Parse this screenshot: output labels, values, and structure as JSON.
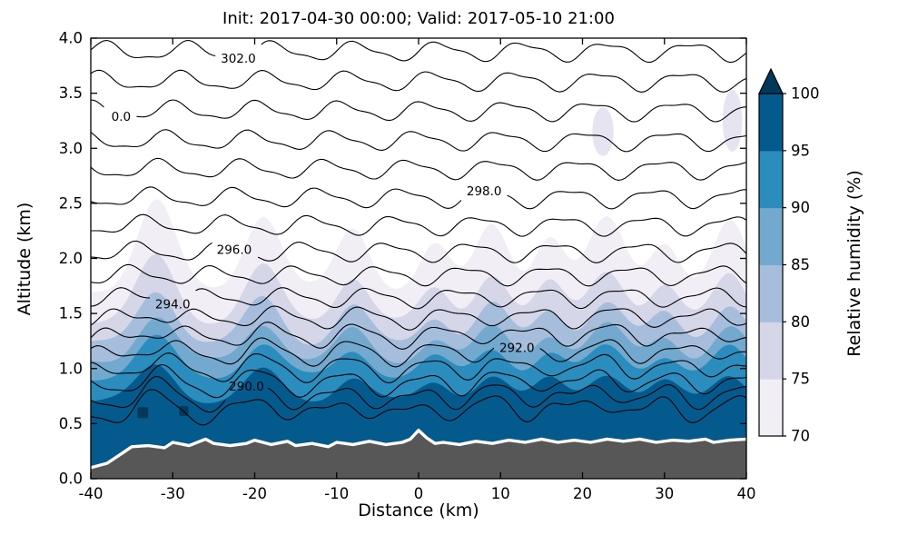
{
  "chart_data": {
    "type": "contour",
    "title": "Init: 2017-04-30 00:00; Valid: 2017-05-10 21:00",
    "xlabel": "Distance (km)",
    "ylabel": "Altitude (km)",
    "xlim": [
      -40,
      40
    ],
    "ylim": [
      0.0,
      4.0
    ],
    "xticks": [
      -40,
      -30,
      -20,
      -10,
      0,
      10,
      20,
      30,
      40
    ],
    "xtick_labels": [
      "-40",
      "-30",
      "-20",
      "-10",
      "0",
      "10",
      "20",
      "30",
      "40"
    ],
    "yticks": [
      0.0,
      0.5,
      1.0,
      1.5,
      2.0,
      2.5,
      3.0,
      3.5,
      4.0
    ],
    "ytick_labels": [
      "0.0",
      "0.5",
      "1.0",
      "1.5",
      "2.0",
      "2.5",
      "3.0",
      "3.5",
      "4.0"
    ],
    "grid": false,
    "colorbar": {
      "label": "Relative humidity (%)",
      "levels": [
        70,
        75,
        80,
        85,
        90,
        95,
        100
      ],
      "tick_labels": [
        "70",
        "75",
        "80",
        "85",
        "90",
        "95",
        "100"
      ],
      "colors": [
        "#f1eef6",
        "#d6d6e9",
        "#a6bddb",
        "#74a9cf",
        "#2b8cbe",
        "#045a8d"
      ],
      "extend": "max",
      "extend_color": "#023858"
    },
    "line_contours": {
      "field": "contour lines (labeled values)",
      "color": "#000000",
      "labeled_levels": [
        "290.0",
        "292.0",
        "294.0",
        "296.0",
        "298.0",
        "302.0",
        "0.0"
      ],
      "bases": [
        3.88,
        3.61,
        3.34,
        3.07,
        2.81,
        2.55,
        2.3,
        2.06,
        1.84,
        1.63,
        1.44,
        1.27,
        1.11,
        0.96,
        0.82,
        0.69,
        0.57
      ],
      "labels": [
        {
          "line": 0,
          "text": "302.0",
          "x": -22
        },
        {
          "line": 2,
          "text": "0.0",
          "x": -36.3
        },
        {
          "line": 5,
          "text": "298.0",
          "x": 8
        },
        {
          "line": 7,
          "text": "296.0",
          "x": -22.5
        },
        {
          "line": 9,
          "text": "294.0",
          "x": -30
        },
        {
          "line": 12,
          "text": "292.0",
          "x": 12
        },
        {
          "line": 15,
          "text": "290.0",
          "x": -21
        }
      ]
    },
    "rh_plumes": [
      {
        "x": -32,
        "s": 1.0,
        "sig": 2.3
      },
      {
        "x": -19,
        "s": 0.85,
        "sig": 2.2
      },
      {
        "x": -8,
        "s": 0.7,
        "sig": 2.0
      },
      {
        "x": 2,
        "s": 0.5,
        "sig": 1.8
      },
      {
        "x": 9,
        "s": 0.75,
        "sig": 2.0
      },
      {
        "x": 16,
        "s": 0.6,
        "sig": 1.8
      },
      {
        "x": 23,
        "s": 0.8,
        "sig": 2.2
      },
      {
        "x": 30,
        "s": 0.55,
        "sig": 1.8
      },
      {
        "x": 38,
        "s": 0.75,
        "sig": 2.0
      }
    ],
    "rh_layers": [
      {
        "level": 70,
        "base": 1.72,
        "amp": 0.8
      },
      {
        "level": 75,
        "base": 1.42,
        "amp": 0.6
      },
      {
        "level": 80,
        "base": 1.22,
        "amp": 0.5
      },
      {
        "level": 85,
        "base": 1.06,
        "amp": 0.42
      },
      {
        "level": 90,
        "base": 0.92,
        "amp": 0.36
      },
      {
        "level": 95,
        "base": 0.7,
        "amp": 0.33
      }
    ],
    "high_rh_patch_color": "#e7e4f1",
    "high_rh_patches": [
      {
        "cx": 22.5,
        "cy": 3.15,
        "rx": 1.3,
        "ry": 0.22
      },
      {
        "cx": 38.3,
        "cy": 3.25,
        "rx": 1.2,
        "ry": 0.28
      }
    ],
    "max_rh_patches": [
      {
        "x": -34.3,
        "y": 0.55,
        "w": 1.3,
        "h": 0.1
      },
      {
        "x": -29.2,
        "y": 0.57,
        "w": 1.1,
        "h": 0.09
      }
    ],
    "terrain": {
      "color": "#575757",
      "surface_line_color": "#ffffff",
      "profile": [
        [
          -40,
          0.1
        ],
        [
          -38,
          0.14
        ],
        [
          -36,
          0.24
        ],
        [
          -35,
          0.29
        ],
        [
          -33,
          0.3
        ],
        [
          -31,
          0.28
        ],
        [
          -30,
          0.33
        ],
        [
          -28,
          0.3
        ],
        [
          -26,
          0.36
        ],
        [
          -25,
          0.32
        ],
        [
          -23,
          0.3
        ],
        [
          -21,
          0.32
        ],
        [
          -20,
          0.35
        ],
        [
          -18,
          0.31
        ],
        [
          -16,
          0.34
        ],
        [
          -15,
          0.3
        ],
        [
          -13,
          0.32
        ],
        [
          -11,
          0.29
        ],
        [
          -10,
          0.33
        ],
        [
          -8,
          0.31
        ],
        [
          -6,
          0.34
        ],
        [
          -4,
          0.31
        ],
        [
          -2,
          0.33
        ],
        [
          -1,
          0.36
        ],
        [
          0,
          0.44
        ],
        [
          1,
          0.37
        ],
        [
          2,
          0.32
        ],
        [
          3,
          0.33
        ],
        [
          5,
          0.31
        ],
        [
          7,
          0.34
        ],
        [
          9,
          0.32
        ],
        [
          11,
          0.35
        ],
        [
          13,
          0.33
        ],
        [
          15,
          0.36
        ],
        [
          17,
          0.33
        ],
        [
          19,
          0.35
        ],
        [
          21,
          0.33
        ],
        [
          23,
          0.36
        ],
        [
          25,
          0.34
        ],
        [
          27,
          0.36
        ],
        [
          29,
          0.33
        ],
        [
          31,
          0.35
        ],
        [
          33,
          0.34
        ],
        [
          35,
          0.36
        ],
        [
          36,
          0.33
        ],
        [
          38,
          0.35
        ],
        [
          40,
          0.36
        ]
      ]
    }
  }
}
